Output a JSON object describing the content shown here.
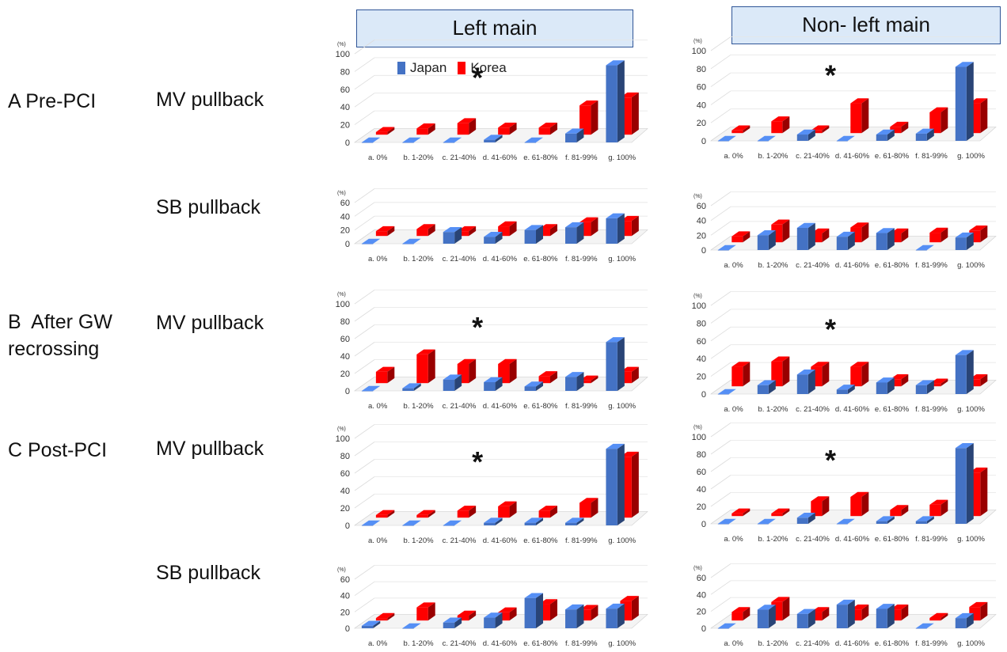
{
  "headers": {
    "left": "Left main",
    "right": "Non- left main"
  },
  "rows": [
    {
      "label": "A  Pre-PCI",
      "sub": "MV pullback"
    },
    {
      "sub": "SB pullback"
    },
    {
      "label": "B  After GW\nrecrossing",
      "sub": "MV pullback"
    },
    {
      "label": "C  Post-PCI",
      "sub": "MV pullback"
    },
    {
      "sub": "SB pullback"
    }
  ],
  "legend": {
    "japan": "Japan",
    "korea": "Korea"
  },
  "colors": {
    "japan": "#4472c4",
    "korea": "#ff0000"
  },
  "star": "*",
  "unit": "(%)",
  "chart_data": [
    {
      "type": "bar",
      "id": "A-MV-LM",
      "categories": [
        "a. 0%",
        "b. 1-20%",
        "c. 21-40%",
        "d. 41-60%",
        "e. 61-80%",
        "f. 81-99%",
        "g. 100%"
      ],
      "ylim": [
        0,
        100
      ],
      "yticks": [
        0,
        20,
        40,
        60,
        80,
        100
      ],
      "series": [
        {
          "name": "Japan",
          "values": [
            0,
            0,
            0,
            3,
            0,
            10,
            87
          ]
        },
        {
          "name": "Korea",
          "values": [
            3,
            7,
            13,
            8,
            8,
            33,
            42
          ]
        }
      ],
      "star_at": 3
    },
    {
      "type": "bar",
      "id": "A-MV-NLM",
      "categories": [
        "a. 0%",
        "b. 1-20%",
        "c. 21-40%",
        "d. 41-60%",
        "e. 61-80%",
        "f. 81-99%",
        "g. 100%"
      ],
      "ylim": [
        0,
        100
      ],
      "yticks": [
        0,
        20,
        40,
        60,
        80,
        100
      ],
      "series": [
        {
          "name": "Japan",
          "values": [
            0,
            0,
            7,
            0,
            7,
            8,
            82
          ]
        },
        {
          "name": "Korea",
          "values": [
            3,
            13,
            3,
            33,
            7,
            23,
            33
          ]
        }
      ],
      "star_at": 3
    },
    {
      "type": "bar",
      "id": "A-SB-LM",
      "categories": [
        "a. 0%",
        "b. 1-20%",
        "c. 21-40%",
        "d. 41-60%",
        "e. 61-80%",
        "f. 81-99%",
        "g. 100%"
      ],
      "ylim": [
        0,
        60
      ],
      "yticks": [
        0,
        20,
        40,
        60
      ],
      "series": [
        {
          "name": "Japan",
          "values": [
            0,
            0,
            17,
            10,
            20,
            24,
            37
          ]
        },
        {
          "name": "Korea",
          "values": [
            7,
            10,
            7,
            14,
            10,
            20,
            22
          ]
        }
      ]
    },
    {
      "type": "bar",
      "id": "A-SB-NLM",
      "categories": [
        "a. 0%",
        "b. 1-20%",
        "c. 21-40%",
        "d. 41-60%",
        "e. 61-80%",
        "f. 81-99%",
        "g. 100%"
      ],
      "ylim": [
        0,
        60
      ],
      "yticks": [
        0,
        20,
        40,
        60
      ],
      "series": [
        {
          "name": "Japan",
          "values": [
            0,
            20,
            30,
            18,
            23,
            0,
            17
          ]
        },
        {
          "name": "Korea",
          "values": [
            8,
            24,
            12,
            20,
            12,
            13,
            16
          ]
        }
      ]
    },
    {
      "type": "bar",
      "id": "B-MV-LM",
      "categories": [
        "a. 0%",
        "b. 1-20%",
        "c. 21-40%",
        "d. 41-60%",
        "e. 61-80%",
        "f. 81-99%",
        "g. 100%"
      ],
      "ylim": [
        0,
        100
      ],
      "yticks": [
        0,
        20,
        40,
        60,
        80,
        100
      ],
      "series": [
        {
          "name": "Japan",
          "values": [
            0,
            3,
            13,
            10,
            5,
            16,
            56
          ]
        },
        {
          "name": "Korea",
          "values": [
            13,
            33,
            22,
            22,
            8,
            3,
            13
          ]
        }
      ],
      "star_at": 3
    },
    {
      "type": "bar",
      "id": "B-MV-NLM",
      "categories": [
        "a. 0%",
        "b. 1-20%",
        "c. 21-40%",
        "d. 41-60%",
        "e. 61-80%",
        "f. 81-99%",
        "g. 100%"
      ],
      "ylim": [
        0,
        100
      ],
      "yticks": [
        0,
        20,
        40,
        60,
        80,
        100
      ],
      "series": [
        {
          "name": "Japan",
          "values": [
            0,
            10,
            22,
            5,
            13,
            10,
            44
          ]
        },
        {
          "name": "Korea",
          "values": [
            22,
            28,
            22,
            22,
            8,
            3,
            8
          ]
        }
      ],
      "star_at": 3
    },
    {
      "type": "bar",
      "id": "C-MV-LM",
      "categories": [
        "a. 0%",
        "b. 1-20%",
        "c. 21-40%",
        "d. 41-60%",
        "e. 61-80%",
        "f. 81-99%",
        "g. 100%"
      ],
      "ylim": [
        0,
        100
      ],
      "yticks": [
        0,
        20,
        40,
        60,
        80,
        100
      ],
      "series": [
        {
          "name": "Japan",
          "values": [
            0,
            0,
            0,
            3,
            3,
            3,
            88
          ]
        },
        {
          "name": "Korea",
          "values": [
            3,
            3,
            8,
            13,
            8,
            17,
            70
          ]
        }
      ],
      "star_at": 3
    },
    {
      "type": "bar",
      "id": "C-MV-NLM",
      "categories": [
        "a. 0%",
        "b. 1-20%",
        "c. 21-40%",
        "d. 41-60%",
        "e. 61-80%",
        "f. 81-99%",
        "g. 100%"
      ],
      "ylim": [
        0,
        100
      ],
      "yticks": [
        0,
        20,
        40,
        60,
        80,
        100
      ],
      "series": [
        {
          "name": "Japan",
          "values": [
            0,
            0,
            7,
            0,
            3,
            3,
            87
          ]
        },
        {
          "name": "Korea",
          "values": [
            3,
            3,
            17,
            22,
            7,
            13,
            50
          ]
        }
      ],
      "star_at": 3
    },
    {
      "type": "bar",
      "id": "C-SB-LM",
      "categories": [
        "a. 0%",
        "b. 1-20%",
        "c. 21-40%",
        "d. 41-60%",
        "e. 61-80%",
        "f. 81-99%",
        "g. 100%"
      ],
      "ylim": [
        0,
        60
      ],
      "yticks": [
        0,
        20,
        40,
        60
      ],
      "series": [
        {
          "name": "Japan",
          "values": [
            3,
            0,
            7,
            13,
            37,
            23,
            24
          ]
        },
        {
          "name": "Korea",
          "values": [
            3,
            16,
            6,
            10,
            20,
            13,
            24
          ]
        }
      ]
    },
    {
      "type": "bar",
      "id": "C-SB-NLM",
      "categories": [
        "a. 0%",
        "b. 1-20%",
        "c. 21-40%",
        "d. 41-60%",
        "e. 61-80%",
        "f. 81-99%",
        "g. 100%"
      ],
      "ylim": [
        0,
        60
      ],
      "yticks": [
        0,
        20,
        40,
        60
      ],
      "series": [
        {
          "name": "Japan",
          "values": [
            0,
            22,
            17,
            28,
            23,
            0,
            12
          ]
        },
        {
          "name": "Korea",
          "values": [
            10,
            22,
            10,
            13,
            13,
            3,
            16
          ]
        }
      ]
    }
  ]
}
